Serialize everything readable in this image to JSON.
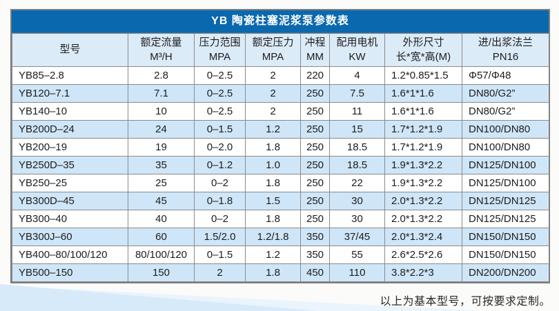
{
  "title": "YB 陶瓷柱塞泥浆泵参数表",
  "footer_note": "以上为基本型号，可按要求定制。",
  "colors": {
    "title_bar_blue": "#0a68ae",
    "header_bg": "#dcebf8",
    "alt_row_bg": "#cfe6f8",
    "grid_border": "#8a8a8a",
    "wedge_blue": "#d7eafa"
  },
  "table": {
    "columns": [
      {
        "line1": "型号",
        "line2": ""
      },
      {
        "line1": "额定流量",
        "line2": "M³/H"
      },
      {
        "line1": "压力范围",
        "line2": "MPA"
      },
      {
        "line1": "额定压力",
        "line2": "MPA"
      },
      {
        "line1": "冲程",
        "line2": "MM"
      },
      {
        "line1": "配用电机",
        "line2": "KW"
      },
      {
        "line1": "外形尺寸",
        "line2": "长*宽*高(M)"
      },
      {
        "line1": "进/出浆法兰",
        "line2": "PN16"
      }
    ],
    "rows": [
      [
        "YB85–2.8",
        "2.8",
        "0–2.5",
        "2",
        "220",
        "4",
        "1.2*0.85*1.5",
        "Φ57/Φ48"
      ],
      [
        "YB120–7.1",
        "7.1",
        "0–2.5",
        "2",
        "250",
        "7.5",
        "1.6*1*1.6",
        "DN80/G2”"
      ],
      [
        "YB140–10",
        "10",
        "0–2.5",
        "2",
        "250",
        "11",
        "1.6*1*1.6",
        "DN80/G2”"
      ],
      [
        "YB200D–24",
        "24",
        "0–1.5",
        "1.2",
        "250",
        "15",
        "1.7*1.2*1.9",
        "DN100/DN80"
      ],
      [
        "YB200–19",
        "19",
        "0–2.0",
        "1.8",
        "250",
        "18.5",
        "1.7*1.2*1.9",
        "DN100/DN80"
      ],
      [
        "YB250D–35",
        "35",
        "0–1.2",
        "1.0",
        "250",
        "18.5",
        "1.9*1.3*2.2",
        "DN125/DN100"
      ],
      [
        "YB250–25",
        "25",
        "0–2",
        "1.8",
        "250",
        "22",
        "1.9*1.3*2.2",
        "DN125/DN100"
      ],
      [
        "YB300D–45",
        "45",
        "0–1.8",
        "1.5",
        "250",
        "30",
        "2.0*1.3*2.2",
        "DN125/DN125"
      ],
      [
        "YB300–40",
        "40",
        "0–2",
        "1.8",
        "250",
        "30",
        "2.0*1.3*2.2",
        "DN125/DN125"
      ],
      [
        "YB300J–60",
        "60",
        "1.5/2.0",
        "1.2/1.8",
        "350",
        "37/45",
        "2.0*1.3*2.4",
        "DN150/DN150"
      ],
      [
        "YB400–80/100/120",
        "80/100/120",
        "0–1.5",
        "1.2",
        "350",
        "55",
        "2.6*2.5*2.6",
        "DN150/DN150"
      ],
      [
        "YB500–150",
        "150",
        "2",
        "1.8",
        "450",
        "110",
        "3.8*2.2*3",
        "DN200/DN200"
      ]
    ]
  }
}
